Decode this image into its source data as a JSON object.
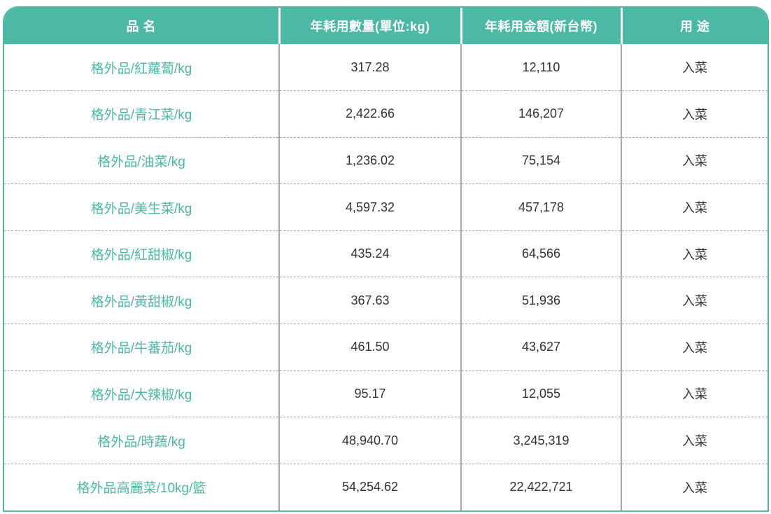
{
  "table": {
    "headers": {
      "name": "品 名",
      "quantity": "年耗用數量(單位:kg)",
      "amount": "年耗用金額(新台幣)",
      "usage": "用 途"
    },
    "rows": [
      {
        "name": "格外品/紅蘿蔔/kg",
        "quantity": "317.28",
        "amount": "12,110",
        "usage": "入菜"
      },
      {
        "name": "格外品/青江菜/kg",
        "quantity": "2,422.66",
        "amount": "146,207",
        "usage": "入菜"
      },
      {
        "name": "格外品/油菜/kg",
        "quantity": "1,236.02",
        "amount": "75,154",
        "usage": "入菜"
      },
      {
        "name": "格外品/美生菜/kg",
        "quantity": "4,597.32",
        "amount": "457,178",
        "usage": "入菜"
      },
      {
        "name": "格外品/紅甜椒/kg",
        "quantity": "435.24",
        "amount": "64,566",
        "usage": "入菜"
      },
      {
        "name": "格外品/黃甜椒/kg",
        "quantity": "367.63",
        "amount": "51,936",
        "usage": "入菜"
      },
      {
        "name": "格外品/牛蕃茄/kg",
        "quantity": "461.50",
        "amount": "43,627",
        "usage": "入菜"
      },
      {
        "name": "格外品/大辣椒/kg",
        "quantity": "95.17",
        "amount": "12,055",
        "usage": "入菜"
      },
      {
        "name": "格外品/時蔬/kg",
        "quantity": "48,940.70",
        "amount": "3,245,319",
        "usage": "入菜"
      },
      {
        "name": "格外品高麗菜/10kg/籃",
        "quantity": "54,254.62",
        "amount": "22,422,721",
        "usage": "入菜"
      }
    ]
  },
  "colors": {
    "accent": "#4bb9a5",
    "text": "#333333",
    "border": "#a8a8a8"
  }
}
